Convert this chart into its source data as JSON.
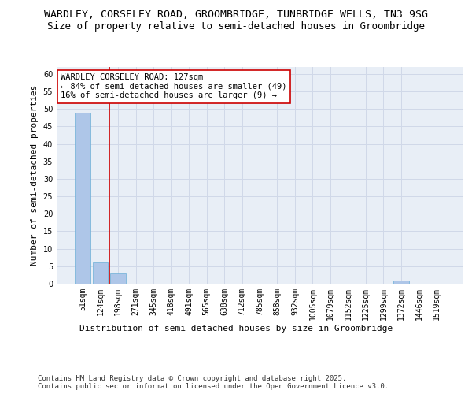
{
  "title_line1": "WARDLEY, CORSELEY ROAD, GROOMBRIDGE, TUNBRIDGE WELLS, TN3 9SG",
  "title_line2": "Size of property relative to semi-detached houses in Groombridge",
  "xlabel": "Distribution of semi-detached houses by size in Groombridge",
  "ylabel": "Number of semi-detached properties",
  "categories": [
    "51sqm",
    "124sqm",
    "198sqm",
    "271sqm",
    "345sqm",
    "418sqm",
    "491sqm",
    "565sqm",
    "638sqm",
    "712sqm",
    "785sqm",
    "858sqm",
    "932sqm",
    "1005sqm",
    "1079sqm",
    "1152sqm",
    "1225sqm",
    "1299sqm",
    "1372sqm",
    "1446sqm",
    "1519sqm"
  ],
  "values": [
    49,
    6,
    3,
    0,
    0,
    0,
    0,
    0,
    0,
    0,
    0,
    0,
    0,
    0,
    0,
    0,
    0,
    0,
    1,
    0,
    0
  ],
  "bar_color": "#aec6e8",
  "bar_edge_color": "#6baed6",
  "grid_color": "#d0d8e8",
  "background_color": "#e8eef6",
  "annotation_box_text": "WARDLEY CORSELEY ROAD: 127sqm\n← 84% of semi-detached houses are smaller (49)\n16% of semi-detached houses are larger (9) →",
  "annotation_box_color": "#ffffff",
  "annotation_box_edge_color": "#cc0000",
  "red_line_x": 1.5,
  "ylim": [
    0,
    62
  ],
  "yticks": [
    0,
    5,
    10,
    15,
    20,
    25,
    30,
    35,
    40,
    45,
    50,
    55,
    60
  ],
  "footer_line1": "Contains HM Land Registry data © Crown copyright and database right 2025.",
  "footer_line2": "Contains public sector information licensed under the Open Government Licence v3.0.",
  "title_fontsize": 9.5,
  "subtitle_fontsize": 9.0,
  "axis_label_fontsize": 8.0,
  "tick_fontsize": 7.0,
  "annotation_fontsize": 7.5,
  "footer_fontsize": 6.5
}
